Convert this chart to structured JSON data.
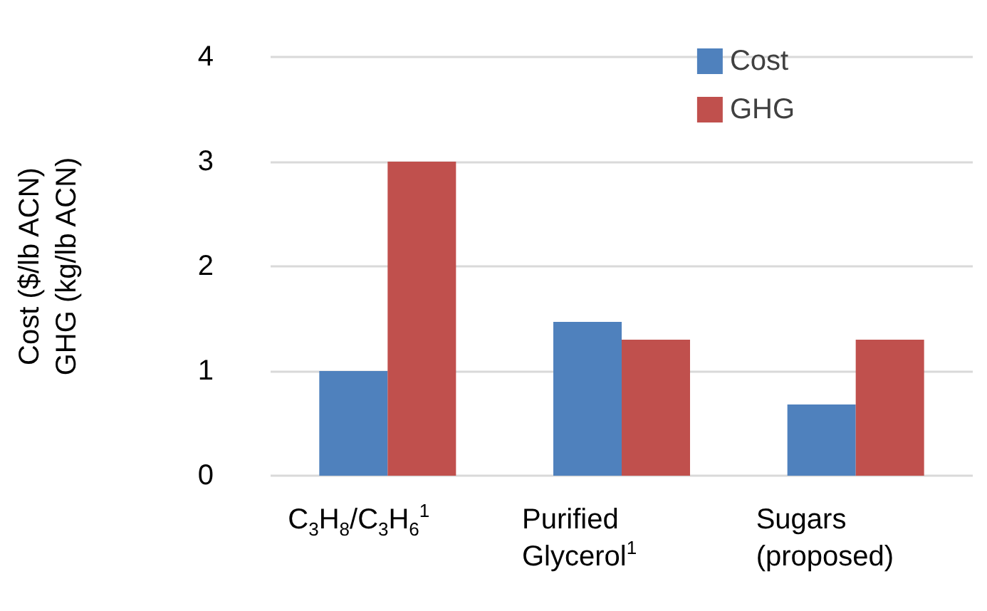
{
  "chart_data": {
    "type": "bar",
    "ylabel": "Cost ($/lb ACN)\nGHG (kg/lb ACN)",
    "categories": [
      "C$_{3}$H$_{8}$/C$_{3}$H$_{6}$$^{1}$",
      "Purified\nGlycerol$^{1}$",
      "Sugars\n(proposed)"
    ],
    "series": [
      {
        "name": "Cost",
        "color": "#4f81bd",
        "values": [
          1.0,
          1.47,
          0.68
        ]
      },
      {
        "name": "GHG",
        "color": "#c0504d",
        "values": [
          3.0,
          1.3,
          1.3
        ]
      }
    ],
    "ylim": [
      0,
      4
    ],
    "yticks": [
      0,
      1,
      2,
      3,
      4
    ],
    "grid": "y",
    "legend": "top right"
  }
}
